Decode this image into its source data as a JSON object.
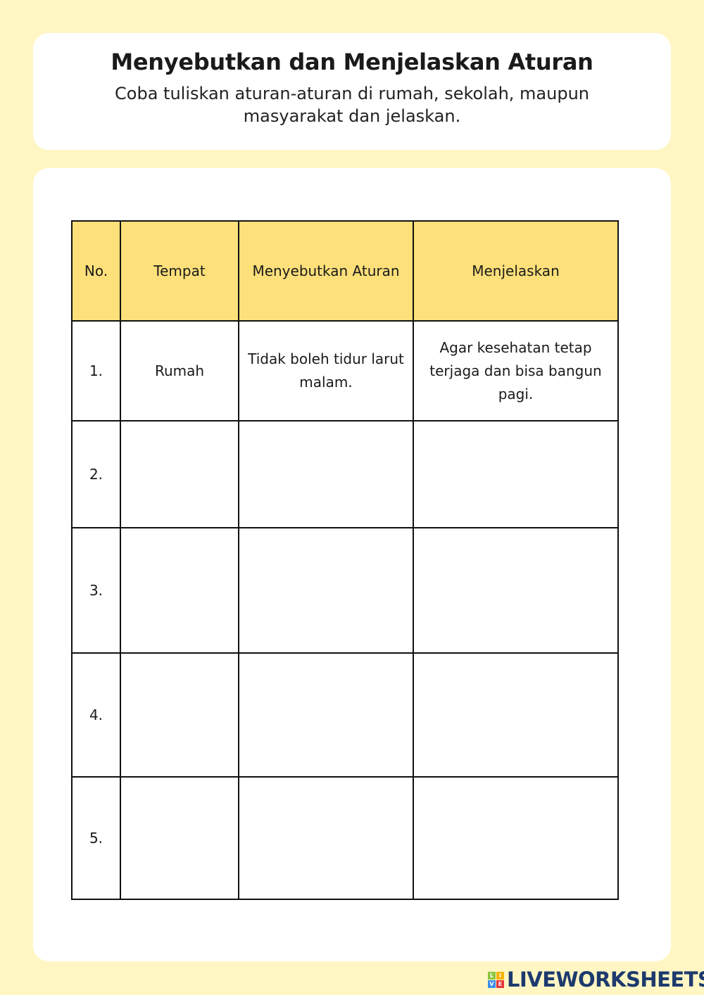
{
  "header": {
    "title": "Menyebutkan dan Menjelaskan Aturan",
    "subtitle": "Coba tuliskan aturan-aturan di rumah, sekolah, maupun masyarakat dan jelaskan."
  },
  "table": {
    "headers": [
      "No.",
      "Tempat",
      "Menyebutkan Aturan",
      "Menjelaskan"
    ],
    "rows": [
      {
        "no": "1.",
        "tempat": "Rumah",
        "aturan": "Tidak boleh tidur larut malam.",
        "penjelasan": "Agar kesehatan tetap terjaga dan bisa bangun pagi."
      },
      {
        "no": "2.",
        "tempat": "",
        "aturan": "",
        "penjelasan": ""
      },
      {
        "no": "3.",
        "tempat": "",
        "aturan": "",
        "penjelasan": ""
      },
      {
        "no": "4.",
        "tempat": "",
        "aturan": "",
        "penjelasan": ""
      },
      {
        "no": "5.",
        "tempat": "",
        "aturan": "",
        "penjelasan": ""
      }
    ],
    "header_color": "#fde07a"
  },
  "logo": {
    "text": "LIVEWORKSHEETS",
    "letters": [
      "L",
      "I",
      "V",
      "E"
    ]
  },
  "colors": {
    "background": "#fff6c4",
    "logo": "#1d3a6e"
  }
}
